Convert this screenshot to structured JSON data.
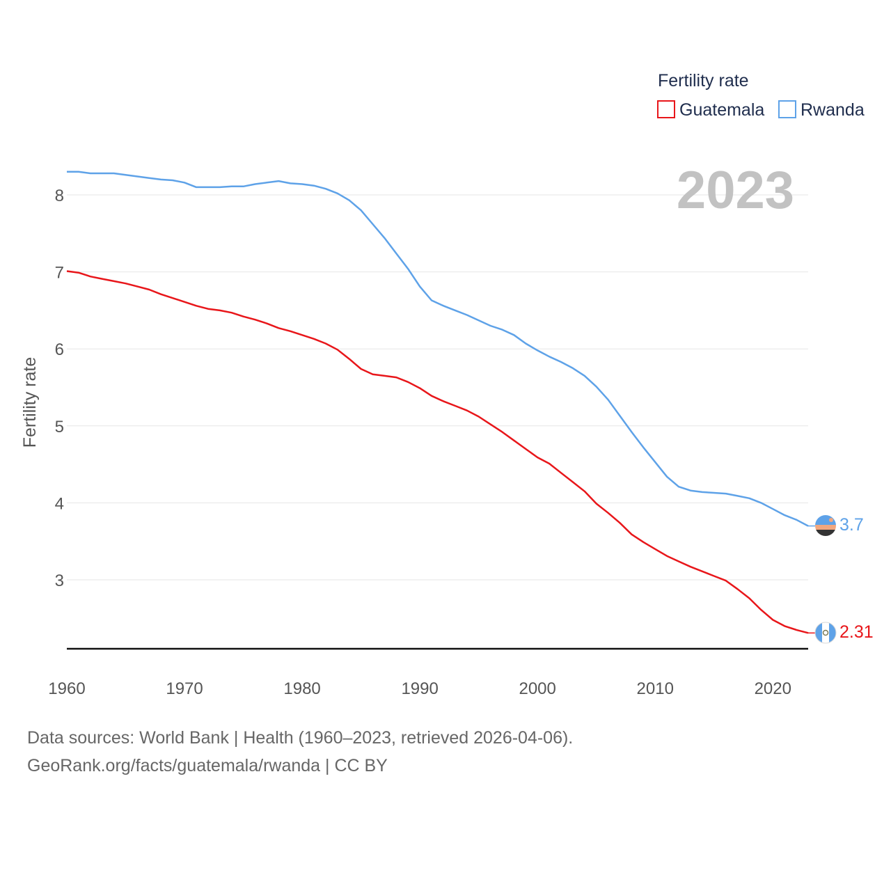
{
  "chart_data": {
    "type": "line",
    "ylabel": "Fertility rate",
    "xlabel": "",
    "xlim": [
      1960,
      2023
    ],
    "ylim": [
      2.1,
      8.4
    ],
    "x_ticks": [
      1960,
      1970,
      1980,
      1990,
      2000,
      2010,
      2020
    ],
    "y_ticks": [
      3,
      4,
      5,
      6,
      7,
      8
    ],
    "year_label": "2023",
    "legend": {
      "title": "Fertility rate",
      "position": "top-right"
    },
    "x": [
      1960,
      1961,
      1962,
      1963,
      1964,
      1965,
      1966,
      1967,
      1968,
      1969,
      1970,
      1971,
      1972,
      1973,
      1974,
      1975,
      1976,
      1977,
      1978,
      1979,
      1980,
      1981,
      1982,
      1983,
      1984,
      1985,
      1986,
      1987,
      1988,
      1989,
      1990,
      1991,
      1992,
      1993,
      1994,
      1995,
      1996,
      1997,
      1998,
      1999,
      2000,
      2001,
      2002,
      2003,
      2004,
      2005,
      2006,
      2007,
      2008,
      2009,
      2010,
      2011,
      2012,
      2013,
      2014,
      2015,
      2016,
      2017,
      2018,
      2019,
      2020,
      2021,
      2022,
      2023
    ],
    "series": [
      {
        "name": "Guatemala",
        "color": "#e8161a",
        "end_label": "2.31",
        "flag": "guatemala-flag-icon",
        "values": [
          7.01,
          6.99,
          6.94,
          6.91,
          6.88,
          6.85,
          6.81,
          6.77,
          6.71,
          6.66,
          6.61,
          6.56,
          6.52,
          6.5,
          6.47,
          6.42,
          6.38,
          6.33,
          6.27,
          6.23,
          6.18,
          6.13,
          6.07,
          5.99,
          5.87,
          5.74,
          5.67,
          5.65,
          5.63,
          5.57,
          5.49,
          5.39,
          5.32,
          5.26,
          5.2,
          5.12,
          5.02,
          4.92,
          4.81,
          4.7,
          4.59,
          4.51,
          4.39,
          4.27,
          4.15,
          3.99,
          3.87,
          3.74,
          3.59,
          3.49,
          3.4,
          3.31,
          3.24,
          3.17,
          3.11,
          3.05,
          2.99,
          2.88,
          2.76,
          2.61,
          2.48,
          2.4,
          2.35,
          2.31
        ]
      },
      {
        "name": "Rwanda",
        "color": "#5ea2e8",
        "end_label": "3.7",
        "flag": "rwanda-flag-icon",
        "values": [
          8.3,
          8.3,
          8.28,
          8.28,
          8.28,
          8.26,
          8.24,
          8.22,
          8.2,
          8.19,
          8.16,
          8.1,
          8.1,
          8.1,
          8.11,
          8.11,
          8.14,
          8.16,
          8.18,
          8.15,
          8.14,
          8.12,
          8.08,
          8.02,
          7.93,
          7.8,
          7.62,
          7.44,
          7.24,
          7.04,
          6.81,
          6.63,
          6.56,
          6.5,
          6.44,
          6.37,
          6.3,
          6.25,
          6.18,
          6.07,
          5.98,
          5.9,
          5.83,
          5.75,
          5.65,
          5.51,
          5.34,
          5.13,
          4.92,
          4.72,
          4.53,
          4.34,
          4.21,
          4.16,
          4.14,
          4.13,
          4.12,
          4.09,
          4.06,
          4.0,
          3.92,
          3.84,
          3.78,
          3.7
        ]
      }
    ]
  },
  "footer": {
    "line1": "Data sources: World Bank | Health (1960–2023, retrieved 2026-04-06).",
    "line2": "GeoRank.org/facts/guatemala/rwanda | CC BY"
  }
}
